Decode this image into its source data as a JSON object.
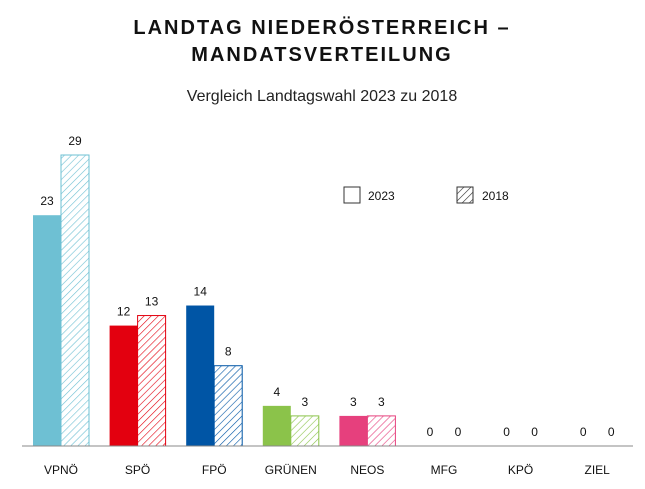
{
  "chart_data": {
    "type": "bar",
    "title_line1": "LANDTAG NIEDERÖSTERREICH –",
    "title_line2": "MANDATSVERTEILUNG",
    "subtitle": "Vergleich Landtagswahl 2023 zu 2018",
    "categories": [
      "VPNÖ",
      "SPÖ",
      "FPÖ",
      "GRÜNEN",
      "NEOS",
      "MFG",
      "KPÖ",
      "ZIEL"
    ],
    "colors": [
      "#6ec0d3",
      "#e3000f",
      "#0055a5",
      "#8bc34a",
      "#e6407d",
      "#999999",
      "#999999",
      "#999999"
    ],
    "series": [
      {
        "name": "2023",
        "style": "solid",
        "values": [
          23,
          12,
          14,
          4,
          3,
          0,
          0,
          0
        ]
      },
      {
        "name": "2018",
        "style": "hatched",
        "values": [
          29,
          13,
          8,
          3,
          3,
          0,
          0,
          0
        ]
      }
    ],
    "ylim": [
      0,
      29
    ],
    "grid": false,
    "legend_position": "top-right"
  }
}
